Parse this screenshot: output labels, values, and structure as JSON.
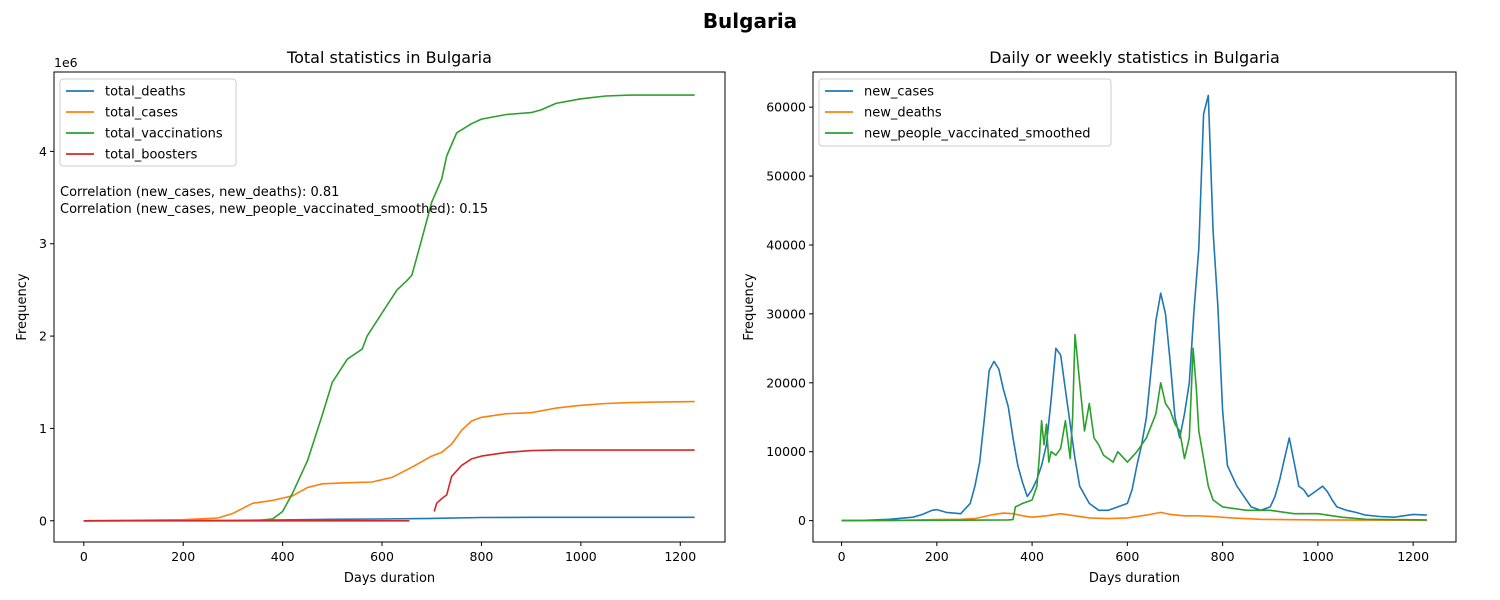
{
  "figure_title": "Bulgaria",
  "chart_data": [
    {
      "type": "line",
      "title": "Total statistics in Bulgaria",
      "xlabel": "Days duration",
      "ylabel": "Frequency",
      "y_offset_label": "1e6",
      "xlim": [
        -60,
        1290
      ],
      "ylim": [
        -0.23,
        4.86
      ],
      "xticks": [
        0,
        200,
        400,
        600,
        800,
        1000,
        1200
      ],
      "yticks": [
        0,
        1,
        2,
        3,
        4
      ],
      "grid": false,
      "legend_placement": "upper-left",
      "annotations": [
        "Correlation (new_cases, new_deaths): 0.81",
        "Correlation (new_cases, new_people_vaccinated_smoothed): 0.15"
      ],
      "series": [
        {
          "name": "total_deaths",
          "color": "#1f77b4",
          "x": [
            0,
            200,
            300,
            400,
            500,
            600,
            700,
            800,
            900,
            1000,
            1100,
            1229
          ],
          "y": [
            0,
            0.002,
            0.004,
            0.009,
            0.016,
            0.019,
            0.026,
            0.035,
            0.037,
            0.038,
            0.038,
            0.038
          ]
        },
        {
          "name": "total_cases",
          "color": "#ff7f0e",
          "x": [
            0,
            200,
            270,
            300,
            340,
            380,
            420,
            450,
            480,
            520,
            580,
            620,
            660,
            700,
            720,
            740,
            760,
            780,
            800,
            850,
            900,
            950,
            1000,
            1050,
            1100,
            1150,
            1229
          ],
          "y": [
            0,
            0.012,
            0.03,
            0.08,
            0.19,
            0.22,
            0.27,
            0.36,
            0.4,
            0.41,
            0.42,
            0.47,
            0.58,
            0.7,
            0.74,
            0.83,
            0.98,
            1.08,
            1.12,
            1.16,
            1.17,
            1.22,
            1.25,
            1.27,
            1.28,
            1.285,
            1.29
          ]
        },
        {
          "name": "total_vaccinations",
          "color": "#2ca02c",
          "x": [
            0,
            350,
            380,
            400,
            420,
            450,
            480,
            500,
            530,
            560,
            570,
            600,
            630,
            650,
            660,
            680,
            700,
            720,
            730,
            750,
            780,
            800,
            850,
            900,
            920,
            950,
            1000,
            1050,
            1100,
            1229
          ],
          "y": [
            0,
            0.003,
            0.02,
            0.1,
            0.3,
            0.65,
            1.15,
            1.5,
            1.75,
            1.86,
            2.0,
            2.25,
            2.5,
            2.6,
            2.66,
            3.05,
            3.45,
            3.7,
            3.95,
            4.2,
            4.3,
            4.35,
            4.4,
            4.42,
            4.45,
            4.52,
            4.57,
            4.6,
            4.61,
            4.61
          ]
        },
        {
          "name": "total_boosters",
          "color": "#d62728",
          "x": [
            0,
            300,
            500,
            655,
            658,
            700,
            705,
            710,
            720,
            730,
            740,
            760,
            780,
            800,
            850,
            900,
            950,
            1000,
            1100,
            1229
          ],
          "y": [
            0,
            0,
            0,
            0,
            null,
            null,
            0.1,
            0.19,
            0.24,
            0.28,
            0.48,
            0.6,
            0.67,
            0.7,
            0.74,
            0.76,
            0.765,
            0.765,
            0.765,
            0.765
          ]
        }
      ]
    },
    {
      "type": "line",
      "title": "Daily or weekly statistics in Bulgaria",
      "xlabel": "Days duration",
      "ylabel": "Frequency",
      "xlim": [
        -60,
        1290
      ],
      "ylim": [
        -3100,
        65100
      ],
      "xticks": [
        0,
        200,
        400,
        600,
        800,
        1000,
        1200
      ],
      "yticks": [
        0,
        10000,
        20000,
        30000,
        40000,
        50000,
        60000
      ],
      "grid": false,
      "legend_placement": "upper-left",
      "series": [
        {
          "name": "new_cases",
          "color": "#1f77b4",
          "x": [
            0,
            50,
            100,
            150,
            170,
            190,
            200,
            220,
            250,
            270,
            280,
            290,
            300,
            310,
            320,
            330,
            340,
            350,
            360,
            370,
            380,
            390,
            400,
            410,
            420,
            430,
            440,
            450,
            460,
            470,
            480,
            490,
            500,
            520,
            540,
            560,
            580,
            600,
            610,
            620,
            630,
            640,
            650,
            660,
            670,
            680,
            690,
            700,
            710,
            720,
            730,
            740,
            750,
            760,
            770,
            780,
            790,
            800,
            810,
            820,
            830,
            840,
            850,
            860,
            880,
            900,
            910,
            920,
            930,
            940,
            950,
            960,
            970,
            980,
            1000,
            1010,
            1020,
            1030,
            1040,
            1060,
            1080,
            1100,
            1130,
            1160,
            1180,
            1200,
            1229
          ],
          "y": [
            0,
            50,
            200,
            500,
            900,
            1500,
            1600,
            1200,
            1000,
            2500,
            5000,
            8500,
            15000,
            21800,
            23100,
            22000,
            19000,
            16500,
            12000,
            8000,
            5500,
            3500,
            4500,
            6000,
            8000,
            11000,
            17500,
            25000,
            24000,
            19000,
            14000,
            9000,
            5000,
            2500,
            1500,
            1500,
            2000,
            2500,
            4500,
            8000,
            11000,
            15000,
            22000,
            29000,
            33000,
            30000,
            23000,
            15000,
            12000,
            15500,
            20000,
            30500,
            39500,
            59000,
            61700,
            42000,
            31000,
            16000,
            8000,
            6500,
            5000,
            4000,
            3000,
            2000,
            1500,
            2000,
            3500,
            6000,
            9000,
            12000,
            8500,
            5000,
            4500,
            3500,
            4500,
            5000,
            4200,
            3000,
            2000,
            1500,
            1200,
            800,
            600,
            500,
            700,
            900,
            800
          ]
        },
        {
          "name": "new_deaths",
          "color": "#ff7f0e",
          "x": [
            0,
            100,
            200,
            250,
            280,
            300,
            320,
            340,
            360,
            380,
            400,
            430,
            460,
            490,
            520,
            560,
            600,
            640,
            670,
            690,
            720,
            750,
            780,
            820,
            880,
            1000,
            1229
          ],
          "y": [
            0,
            20,
            150,
            200,
            300,
            600,
            900,
            1100,
            1000,
            700,
            500,
            700,
            1000,
            700,
            400,
            300,
            400,
            800,
            1200,
            900,
            700,
            700,
            600,
            400,
            200,
            100,
            50
          ]
        },
        {
          "name": "new_people_vaccinated_smoothed",
          "color": "#2ca02c",
          "x": [
            0,
            200,
            350,
            360,
            365,
            380,
            400,
            410,
            415,
            420,
            425,
            430,
            435,
            440,
            450,
            460,
            470,
            480,
            485,
            490,
            493,
            500,
            510,
            520,
            530,
            540,
            550,
            560,
            570,
            580,
            600,
            620,
            640,
            660,
            670,
            680,
            690,
            700,
            710,
            720,
            730,
            738,
            745,
            750,
            760,
            770,
            780,
            800,
            850,
            900,
            950,
            1000,
            1050,
            1100,
            1229
          ],
          "y": [
            0,
            50,
            100,
            150,
            2000,
            2500,
            3000,
            5000,
            9000,
            14500,
            11000,
            14000,
            8500,
            10000,
            9500,
            10500,
            14500,
            9000,
            15000,
            27000,
            25000,
            20000,
            13000,
            17000,
            12000,
            11000,
            9500,
            9000,
            8500,
            10000,
            8500,
            10000,
            12000,
            15500,
            20000,
            17000,
            16000,
            14000,
            13000,
            9000,
            12000,
            25000,
            19000,
            13000,
            9000,
            5000,
            3000,
            2000,
            1500,
            1500,
            1000,
            1000,
            500,
            200,
            100
          ]
        }
      ]
    }
  ]
}
